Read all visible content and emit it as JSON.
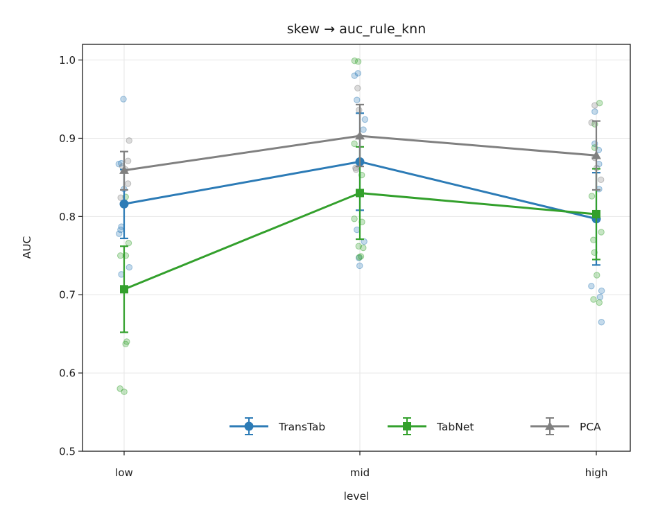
{
  "chart_data": {
    "type": "line",
    "title": "skew → auc_rule_knn",
    "xlabel": "level",
    "ylabel": "AUC",
    "categories": [
      "low",
      "mid",
      "high"
    ],
    "ylim": [
      0.5,
      1.02
    ],
    "yticks": [
      "0.5",
      "0.6",
      "0.7",
      "0.8",
      "0.9",
      "1.0"
    ],
    "grid": true,
    "legend_position": "bottom-right",
    "series": [
      {
        "name": "TransTab",
        "color": "#2c7bb6",
        "marker": "circle",
        "values": [
          0.816,
          0.87,
          0.797
        ],
        "err_low": [
          0.772,
          0.808,
          0.738
        ],
        "err_high": [
          0.86,
          0.932,
          0.856
        ],
        "points": [
          [
            0.95,
            0.835,
            0.868,
            0.867,
            0.783,
            0.778,
            0.735,
            0.726,
            0.787
          ],
          [
            0.949,
            0.983,
            0.98,
            0.924,
            0.911,
            0.783,
            0.768,
            0.747,
            0.737
          ],
          [
            0.934,
            0.893,
            0.885,
            0.867,
            0.835,
            0.711,
            0.705,
            0.697,
            0.665
          ]
        ]
      },
      {
        "name": "TabNet",
        "color": "#33a02c",
        "marker": "square",
        "values": [
          0.707,
          0.83,
          0.803
        ],
        "err_low": [
          0.652,
          0.771,
          0.745
        ],
        "err_high": [
          0.762,
          0.889,
          0.861
        ],
        "points": [
          [
            0.825,
            0.766,
            0.75,
            0.75,
            0.64,
            0.637,
            0.58,
            0.576
          ],
          [
            0.999,
            0.998,
            0.893,
            0.853,
            0.797,
            0.793,
            0.762,
            0.76,
            0.749,
            0.748
          ],
          [
            0.945,
            0.918,
            0.888,
            0.826,
            0.78,
            0.77,
            0.754,
            0.725,
            0.694,
            0.69
          ]
        ]
      },
      {
        "name": "PCA",
        "color": "#808080",
        "marker": "triangle",
        "values": [
          0.859,
          0.903,
          0.878
        ],
        "err_low": [
          0.834,
          0.864,
          0.834
        ],
        "err_high": [
          0.883,
          0.943,
          0.922
        ],
        "points": [
          [
            0.897,
            0.871,
            0.864,
            0.86,
            0.842,
            0.824
          ],
          [
            0.964,
            0.936,
            0.902,
            0.862,
            0.86
          ],
          [
            0.942,
            0.92,
            0.875,
            0.862,
            0.847
          ]
        ]
      }
    ]
  }
}
